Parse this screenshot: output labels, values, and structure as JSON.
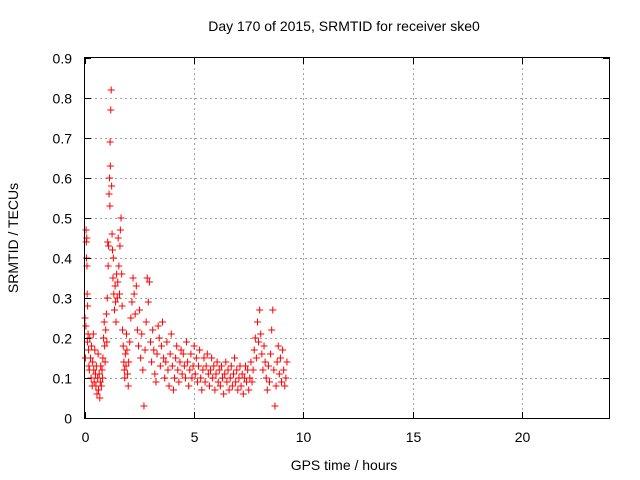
{
  "chart_data": {
    "type": "scatter",
    "title": "Day 170 of 2015, SRMTID for receiver ske0",
    "xlabel": "GPS time / hours",
    "ylabel": "SRMTID / TECUs",
    "xlim": [
      0,
      24
    ],
    "ylim": [
      0,
      0.9
    ],
    "xticks": [
      0,
      5,
      10,
      15,
      20
    ],
    "xtick_labels": [
      "0",
      "5",
      "10",
      "15",
      "20"
    ],
    "yticks": [
      0,
      0.1,
      0.2,
      0.3,
      0.4,
      0.5,
      0.6,
      0.7,
      0.8,
      0.9
    ],
    "ytick_labels": [
      "0",
      "0.1",
      "0.2",
      "0.3",
      "0.4",
      "0.5",
      "0.6",
      "0.7",
      "0.8",
      "0.9"
    ],
    "grid": true,
    "marker": "+",
    "color": "#ff0000",
    "series": [
      {
        "name": "SRMTID",
        "points": [
          [
            0.0,
            0.25
          ],
          [
            0.02,
            0.15
          ],
          [
            0.04,
            0.23
          ],
          [
            0.05,
            0.47
          ],
          [
            0.06,
            0.44
          ],
          [
            0.07,
            0.4
          ],
          [
            0.08,
            0.45
          ],
          [
            0.09,
            0.38
          ],
          [
            0.1,
            0.31
          ],
          [
            0.11,
            0.19
          ],
          [
            0.12,
            0.28
          ],
          [
            0.14,
            0.21
          ],
          [
            0.16,
            0.17
          ],
          [
            0.18,
            0.13
          ],
          [
            0.2,
            0.12
          ],
          [
            0.22,
            0.2
          ],
          [
            0.25,
            0.15
          ],
          [
            0.28,
            0.1
          ],
          [
            0.3,
            0.18
          ],
          [
            0.33,
            0.08
          ],
          [
            0.35,
            0.14
          ],
          [
            0.38,
            0.21
          ],
          [
            0.4,
            0.12
          ],
          [
            0.42,
            0.09
          ],
          [
            0.45,
            0.17
          ],
          [
            0.48,
            0.11
          ],
          [
            0.5,
            0.08
          ],
          [
            0.52,
            0.13
          ],
          [
            0.55,
            0.06
          ],
          [
            0.58,
            0.1
          ],
          [
            0.6,
            0.16
          ],
          [
            0.62,
            0.07
          ],
          [
            0.65,
            0.11
          ],
          [
            0.68,
            0.05
          ],
          [
            0.7,
            0.09
          ],
          [
            0.72,
            0.13
          ],
          [
            0.75,
            0.08
          ],
          [
            0.78,
            0.12
          ],
          [
            0.8,
            0.1
          ],
          [
            0.82,
            0.15
          ],
          [
            0.85,
            0.2
          ],
          [
            0.88,
            0.24
          ],
          [
            0.9,
            0.18
          ],
          [
            0.92,
            0.14
          ],
          [
            0.95,
            0.22
          ],
          [
            0.98,
            0.26
          ],
          [
            1.0,
            0.19
          ],
          [
            1.02,
            0.3
          ],
          [
            1.04,
            0.44
          ],
          [
            1.06,
            0.38
          ],
          [
            1.08,
            0.43
          ],
          [
            1.1,
            0.56
          ],
          [
            1.12,
            0.6
          ],
          [
            1.14,
            0.53
          ],
          [
            1.15,
            0.69
          ],
          [
            1.16,
            0.63
          ],
          [
            1.18,
            0.77
          ],
          [
            1.2,
            0.82
          ],
          [
            1.22,
            0.58
          ],
          [
            1.24,
            0.46
          ],
          [
            1.26,
            0.42
          ],
          [
            1.28,
            0.35
          ],
          [
            1.3,
            0.4
          ],
          [
            1.32,
            0.31
          ],
          [
            1.35,
            0.27
          ],
          [
            1.38,
            0.33
          ],
          [
            1.4,
            0.29
          ],
          [
            1.42,
            0.24
          ],
          [
            1.45,
            0.36
          ],
          [
            1.48,
            0.3
          ],
          [
            1.5,
            0.34
          ],
          [
            1.52,
            0.45
          ],
          [
            1.55,
            0.38
          ],
          [
            1.58,
            0.31
          ],
          [
            1.6,
            0.43
          ],
          [
            1.62,
            0.47
          ],
          [
            1.65,
            0.5
          ],
          [
            1.68,
            0.36
          ],
          [
            1.7,
            0.28
          ],
          [
            1.72,
            0.22
          ],
          [
            1.75,
            0.18
          ],
          [
            1.78,
            0.14
          ],
          [
            1.8,
            0.12
          ],
          [
            1.82,
            0.1
          ],
          [
            1.85,
            0.16
          ],
          [
            1.88,
            0.13
          ],
          [
            1.9,
            0.21
          ],
          [
            1.92,
            0.17
          ],
          [
            1.95,
            0.11
          ],
          [
            1.98,
            0.08
          ],
          [
            2.0,
            0.14
          ],
          [
            2.05,
            0.19
          ],
          [
            2.1,
            0.25
          ],
          [
            2.15,
            0.29
          ],
          [
            2.2,
            0.35
          ],
          [
            2.25,
            0.31
          ],
          [
            2.3,
            0.26
          ],
          [
            2.35,
            0.33
          ],
          [
            2.4,
            0.22
          ],
          [
            2.45,
            0.18
          ],
          [
            2.5,
            0.27
          ],
          [
            2.55,
            0.15
          ],
          [
            2.6,
            0.21
          ],
          [
            2.65,
            0.12
          ],
          [
            2.7,
            0.03
          ],
          [
            2.75,
            0.17
          ],
          [
            2.8,
            0.24
          ],
          [
            2.85,
            0.35
          ],
          [
            2.9,
            0.29
          ],
          [
            2.95,
            0.34
          ],
          [
            3.0,
            0.19
          ],
          [
            3.05,
            0.14
          ],
          [
            3.1,
            0.22
          ],
          [
            3.15,
            0.17
          ],
          [
            3.2,
            0.11
          ],
          [
            3.25,
            0.09
          ],
          [
            3.3,
            0.16
          ],
          [
            3.35,
            0.23
          ],
          [
            3.4,
            0.2
          ],
          [
            3.45,
            0.13
          ],
          [
            3.5,
            0.18
          ],
          [
            3.55,
            0.24
          ],
          [
            3.6,
            0.15
          ],
          [
            3.65,
            0.1
          ],
          [
            3.7,
            0.14
          ],
          [
            3.75,
            0.19
          ],
          [
            3.8,
            0.12
          ],
          [
            3.85,
            0.08
          ],
          [
            3.9,
            0.16
          ],
          [
            3.95,
            0.21
          ],
          [
            4.0,
            0.13
          ],
          [
            4.05,
            0.07
          ],
          [
            4.1,
            0.1
          ],
          [
            4.15,
            0.15
          ],
          [
            4.2,
            0.18
          ],
          [
            4.25,
            0.12
          ],
          [
            4.3,
            0.09
          ],
          [
            4.35,
            0.14
          ],
          [
            4.4,
            0.17
          ],
          [
            4.45,
            0.11
          ],
          [
            4.5,
            0.16
          ],
          [
            4.55,
            0.13
          ],
          [
            4.6,
            0.1
          ],
          [
            4.65,
            0.19
          ],
          [
            4.7,
            0.14
          ],
          [
            4.75,
            0.08
          ],
          [
            4.8,
            0.12
          ],
          [
            4.85,
            0.16
          ],
          [
            4.9,
            0.1
          ],
          [
            4.95,
            0.13
          ],
          [
            5.0,
            0.18
          ],
          [
            5.05,
            0.11
          ],
          [
            5.1,
            0.15
          ],
          [
            5.15,
            0.09
          ],
          [
            5.2,
            0.13
          ],
          [
            5.25,
            0.17
          ],
          [
            5.3,
            0.1
          ],
          [
            5.35,
            0.07
          ],
          [
            5.4,
            0.12
          ],
          [
            5.45,
            0.15
          ],
          [
            5.5,
            0.09
          ],
          [
            5.55,
            0.13
          ],
          [
            5.6,
            0.16
          ],
          [
            5.65,
            0.11
          ],
          [
            5.7,
            0.08
          ],
          [
            5.75,
            0.12
          ],
          [
            5.8,
            0.15
          ],
          [
            5.85,
            0.1
          ],
          [
            5.9,
            0.13
          ],
          [
            5.95,
            0.07
          ],
          [
            6.0,
            0.11
          ],
          [
            6.05,
            0.14
          ],
          [
            6.1,
            0.09
          ],
          [
            6.15,
            0.12
          ],
          [
            6.2,
            0.08
          ],
          [
            6.25,
            0.13
          ],
          [
            6.3,
            0.1
          ],
          [
            6.35,
            0.06
          ],
          [
            6.4,
            0.11
          ],
          [
            6.45,
            0.14
          ],
          [
            6.5,
            0.09
          ],
          [
            6.55,
            0.12
          ],
          [
            6.6,
            0.07
          ],
          [
            6.65,
            0.1
          ],
          [
            6.7,
            0.13
          ],
          [
            6.75,
            0.08
          ],
          [
            6.8,
            0.11
          ],
          [
            6.85,
            0.15
          ],
          [
            6.9,
            0.09
          ],
          [
            6.95,
            0.12
          ],
          [
            7.0,
            0.07
          ],
          [
            7.05,
            0.1
          ],
          [
            7.1,
            0.13
          ],
          [
            7.15,
            0.08
          ],
          [
            7.2,
            0.11
          ],
          [
            7.25,
            0.06
          ],
          [
            7.3,
            0.1
          ],
          [
            7.35,
            0.13
          ],
          [
            7.4,
            0.09
          ],
          [
            7.45,
            0.12
          ],
          [
            7.5,
            0.07
          ],
          [
            7.55,
            0.1
          ],
          [
            7.6,
            0.14
          ],
          [
            7.65,
            0.09
          ],
          [
            7.7,
            0.12
          ],
          [
            7.75,
            0.17
          ],
          [
            7.8,
            0.2
          ],
          [
            7.85,
            0.15
          ],
          [
            7.9,
            0.24
          ],
          [
            7.95,
            0.19
          ],
          [
            8.0,
            0.27
          ],
          [
            8.05,
            0.21
          ],
          [
            8.1,
            0.16
          ],
          [
            8.15,
            0.12
          ],
          [
            8.2,
            0.18
          ],
          [
            8.25,
            0.14
          ],
          [
            8.3,
            0.1
          ],
          [
            8.35,
            0.07
          ],
          [
            8.4,
            0.13
          ],
          [
            8.45,
            0.09
          ],
          [
            8.5,
            0.16
          ],
          [
            8.55,
            0.22
          ],
          [
            8.6,
            0.27
          ],
          [
            8.65,
            0.12
          ],
          [
            8.7,
            0.03
          ],
          [
            8.75,
            0.08
          ],
          [
            8.8,
            0.14
          ],
          [
            8.85,
            0.18
          ],
          [
            8.9,
            0.11
          ],
          [
            8.95,
            0.15
          ],
          [
            9.0,
            0.09
          ],
          [
            9.05,
            0.17
          ],
          [
            9.1,
            0.12
          ],
          [
            9.15,
            0.08
          ],
          [
            9.2,
            0.1
          ],
          [
            9.25,
            0.14
          ]
        ]
      }
    ]
  }
}
